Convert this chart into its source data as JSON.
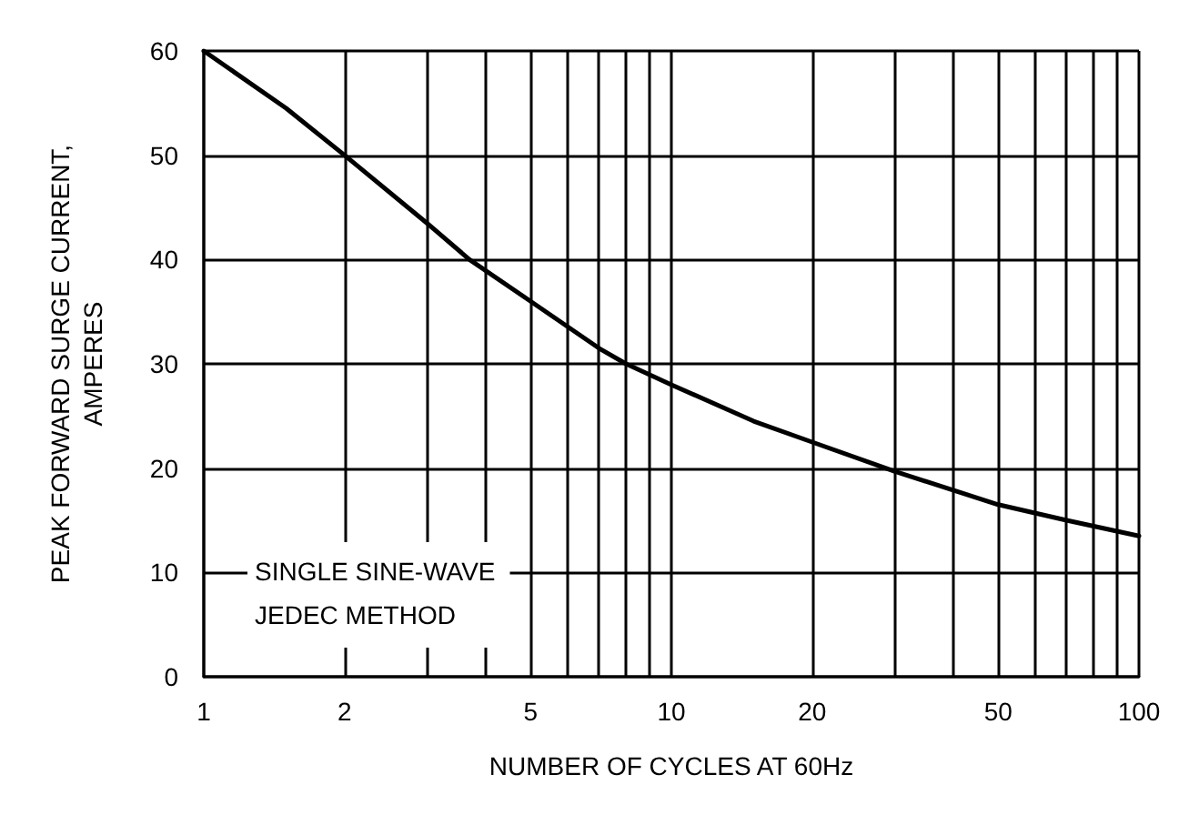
{
  "chart_data": {
    "type": "line",
    "xlabel": "NUMBER OF CYCLES AT 60Hz",
    "ylabel": "PEAK FORWARD SURGE CURRENT,\nAMPERES",
    "log": "x",
    "x": [
      1,
      1.5,
      2,
      3,
      3.7,
      5,
      7,
      8,
      10,
      15,
      20,
      30,
      50,
      70,
      100
    ],
    "series": [
      {
        "color": "#000000",
        "values": [
          60,
          54.5,
          50,
          43.5,
          40,
          36,
          31.5,
          30,
          28,
          24.5,
          22.5,
          19.7,
          16.5,
          15,
          13.5
        ]
      }
    ],
    "xlim": [
      1,
      100
    ],
    "xticks": [
      1,
      2,
      {
        "value": 3,
        "label": null
      },
      {
        "value": 4,
        "label": null
      },
      5,
      {
        "value": 6,
        "label": null
      },
      {
        "value": 7,
        "label": null
      },
      {
        "value": 8,
        "label": null
      },
      {
        "value": 9,
        "label": null
      },
      10,
      20,
      {
        "value": 30,
        "label": null
      },
      {
        "value": 40,
        "label": null
      },
      50,
      {
        "value": 60,
        "label": null
      },
      {
        "value": 70,
        "label": null
      },
      {
        "value": 80,
        "label": null
      },
      {
        "value": 90,
        "label": null
      },
      100
    ],
    "ylim": [
      0,
      60
    ],
    "yticks": [
      0,
      10,
      20,
      30,
      40,
      50,
      60
    ],
    "grid": true,
    "marker": "none",
    "line_style": "solid",
    "annotations": [
      "SINGLE SINE-WAVE\nJEDEC METHOD"
    ]
  }
}
